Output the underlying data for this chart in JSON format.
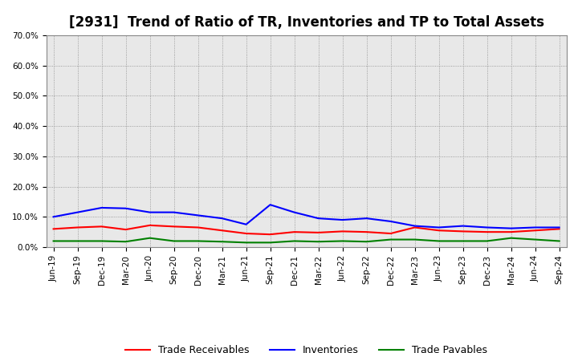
{
  "title": "[2931]  Trend of Ratio of TR, Inventories and TP to Total Assets",
  "x_labels": [
    "Jun-19",
    "Sep-19",
    "Dec-19",
    "Mar-20",
    "Jun-20",
    "Sep-20",
    "Dec-20",
    "Mar-21",
    "Jun-21",
    "Sep-21",
    "Dec-21",
    "Mar-22",
    "Jun-22",
    "Sep-22",
    "Dec-22",
    "Mar-23",
    "Jun-23",
    "Sep-23",
    "Dec-23",
    "Mar-24",
    "Jun-24",
    "Sep-24"
  ],
  "trade_receivables": [
    6.0,
    6.5,
    6.8,
    5.8,
    7.2,
    6.8,
    6.5,
    5.5,
    4.5,
    4.2,
    5.0,
    4.8,
    5.2,
    5.0,
    4.5,
    6.5,
    5.5,
    5.2,
    5.0,
    5.0,
    5.5,
    6.0
  ],
  "inventories": [
    10.0,
    11.5,
    13.0,
    12.8,
    11.5,
    11.5,
    10.5,
    9.5,
    7.5,
    14.0,
    11.5,
    9.5,
    9.0,
    9.5,
    8.5,
    7.0,
    6.5,
    7.0,
    6.5,
    6.2,
    6.5,
    6.5
  ],
  "trade_payables": [
    2.0,
    2.0,
    2.0,
    1.8,
    3.0,
    2.0,
    2.0,
    1.8,
    1.5,
    1.5,
    2.0,
    1.8,
    2.0,
    1.8,
    2.5,
    2.5,
    2.0,
    2.0,
    2.0,
    3.0,
    2.5,
    2.0
  ],
  "tr_color": "#ff0000",
  "inv_color": "#0000ff",
  "tp_color": "#008000",
  "ylim": [
    0,
    70
  ],
  "yticks": [
    0,
    10,
    20,
    30,
    40,
    50,
    60,
    70
  ],
  "ytick_labels": [
    "0.0%",
    "10.0%",
    "20.0%",
    "30.0%",
    "40.0%",
    "50.0%",
    "60.0%",
    "70.0%"
  ],
  "legend_tr": "Trade Receivables",
  "legend_inv": "Inventories",
  "legend_tp": "Trade Payables",
  "bg_color": "#ffffff",
  "plot_bg_color": "#e8e8e8",
  "grid_color": "#aaaaaa",
  "title_fontsize": 12,
  "label_fontsize": 7.5,
  "legend_fontsize": 9,
  "line_width": 1.5
}
